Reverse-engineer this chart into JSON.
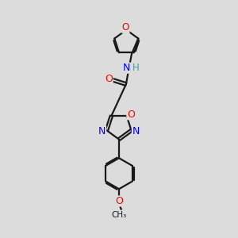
{
  "background_color": "#dcdcdc",
  "bond_color": "#1a1a1a",
  "atom_colors": {
    "O": "#ff0000",
    "N": "#0000ff",
    "H": "#4a9a9a",
    "C": "#1a1a1a"
  },
  "figsize": [
    3.0,
    3.0
  ],
  "dpi": 100
}
